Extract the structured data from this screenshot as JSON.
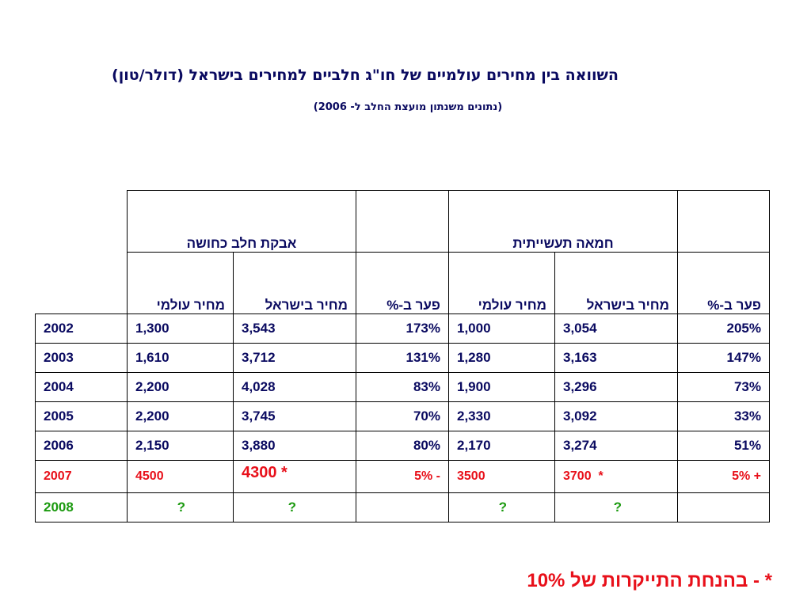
{
  "title": "השוואה בין  מחירים עולמיים של חו\"ג חלביים למחירים בישראל (דולר/טון)",
  "subtitle": "(נתונים משנתון מועצת החלב ל- 2006)",
  "groups": {
    "powder": "אבקת חלב כחושה",
    "butter": "חמאה תעשייתית"
  },
  "columns": {
    "world": "מחיר עולמי",
    "israel": "מחיר בישראל",
    "gap": "פער ב-%"
  },
  "rows": [
    {
      "year": "2002",
      "pw": "1,300",
      "pi": "3,543",
      "pg": "173%",
      "bw": "1,000",
      "bi": "3,054",
      "bg": "205%"
    },
    {
      "year": "2003",
      "pw": "1,610",
      "pi": "3,712",
      "pg": "131%",
      "bw": "1,280",
      "bi": "3,163",
      "bg": "147%"
    },
    {
      "year": "2004",
      "pw": "2,200",
      "pi": "4,028",
      "pg": "83%",
      "bw": "1,900",
      "bi": "3,296",
      "bg": "73%"
    },
    {
      "year": "2005",
      "pw": "2,200",
      "pi": "3,745",
      "pg": "70%",
      "bw": "2,330",
      "bi": "3,092",
      "bg": "33%"
    },
    {
      "year": "2006",
      "pw": "2,150",
      "pi": "3,880",
      "pg": "80%",
      "bw": "2,170",
      "bi": "3,274",
      "bg": "51%"
    },
    {
      "year": "2007",
      "pw": "4500",
      "pi": "4300 *",
      "pg": "- 5%",
      "bw": "3500",
      "bi": "3700  *",
      "bg": "+ 5%"
    },
    {
      "year": "2008",
      "pw": "?",
      "pi": "?",
      "pg": "",
      "bw": "?",
      "bi": "?",
      "bg": ""
    }
  ],
  "footnote": "*  - בהנחת התייקרות של 10%",
  "colors": {
    "navy": "#0a0a60",
    "red": "#e8101a",
    "green": "#1c9a10"
  }
}
